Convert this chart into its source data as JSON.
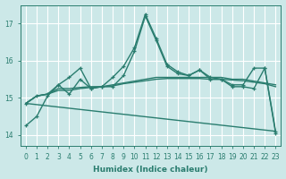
{
  "xlabel": "Humidex (Indice chaleur)",
  "xlim": [
    -0.5,
    23.5
  ],
  "ylim": [
    13.7,
    17.5
  ],
  "yticks": [
    14,
    15,
    16,
    17
  ],
  "xticks": [
    0,
    1,
    2,
    3,
    4,
    5,
    6,
    7,
    8,
    9,
    10,
    11,
    12,
    13,
    14,
    15,
    16,
    17,
    18,
    19,
    20,
    21,
    22,
    23
  ],
  "bg_color": "#cce8e8",
  "line_color": "#2a7d6f",
  "grid_color": "#ffffff",
  "series": [
    {
      "x": [
        0,
        1,
        2,
        3,
        4,
        5,
        6,
        7,
        8,
        9,
        10,
        11,
        12,
        13,
        14,
        15,
        16,
        17,
        18,
        19,
        20,
        21,
        22,
        23
      ],
      "y": [
        14.25,
        14.5,
        15.05,
        15.35,
        15.55,
        15.8,
        15.25,
        15.3,
        15.55,
        15.85,
        16.35,
        17.25,
        16.6,
        15.9,
        15.7,
        15.6,
        15.75,
        15.55,
        15.5,
        15.35,
        15.35,
        15.8,
        15.8,
        14.05
      ],
      "marker": true,
      "linestyle": "-",
      "linewidth": 1.0
    },
    {
      "x": [
        0,
        1,
        2,
        3,
        4,
        5,
        6,
        7,
        8,
        9,
        10,
        11,
        12,
        13,
        14,
        15,
        16,
        17,
        18,
        19,
        20,
        21,
        22,
        23
      ],
      "y": [
        14.85,
        15.05,
        15.1,
        15.35,
        15.1,
        15.5,
        15.25,
        15.3,
        15.3,
        15.6,
        16.25,
        17.2,
        16.55,
        15.85,
        15.65,
        15.6,
        15.75,
        15.5,
        15.5,
        15.3,
        15.3,
        15.25,
        15.8,
        14.1
      ],
      "marker": true,
      "linestyle": "-",
      "linewidth": 1.0
    },
    {
      "x": [
        0,
        1,
        2,
        3,
        4,
        5,
        6,
        7,
        8,
        9,
        10,
        11,
        12,
        13,
        14,
        15,
        16,
        17,
        18,
        19,
        20,
        21,
        22,
        23
      ],
      "y": [
        14.85,
        15.05,
        15.1,
        15.25,
        15.25,
        15.28,
        15.3,
        15.3,
        15.35,
        15.4,
        15.45,
        15.5,
        15.55,
        15.55,
        15.55,
        15.55,
        15.55,
        15.55,
        15.55,
        15.5,
        15.5,
        15.45,
        15.4,
        15.35
      ],
      "marker": false,
      "linestyle": "-",
      "linewidth": 1.0
    },
    {
      "x": [
        0,
        1,
        2,
        3,
        4,
        5,
        6,
        7,
        8,
        9,
        10,
        11,
        12,
        13,
        14,
        15,
        16,
        17,
        18,
        19,
        20,
        21,
        22,
        23
      ],
      "y": [
        14.85,
        15.05,
        15.1,
        15.2,
        15.2,
        15.25,
        15.28,
        15.3,
        15.32,
        15.38,
        15.42,
        15.46,
        15.5,
        15.52,
        15.52,
        15.52,
        15.52,
        15.5,
        15.5,
        15.48,
        15.46,
        15.42,
        15.38,
        15.3
      ],
      "marker": false,
      "linestyle": "-",
      "linewidth": 1.0
    },
    {
      "x": [
        0,
        23
      ],
      "y": [
        14.85,
        14.1
      ],
      "marker": false,
      "linestyle": "-",
      "linewidth": 1.0
    }
  ]
}
